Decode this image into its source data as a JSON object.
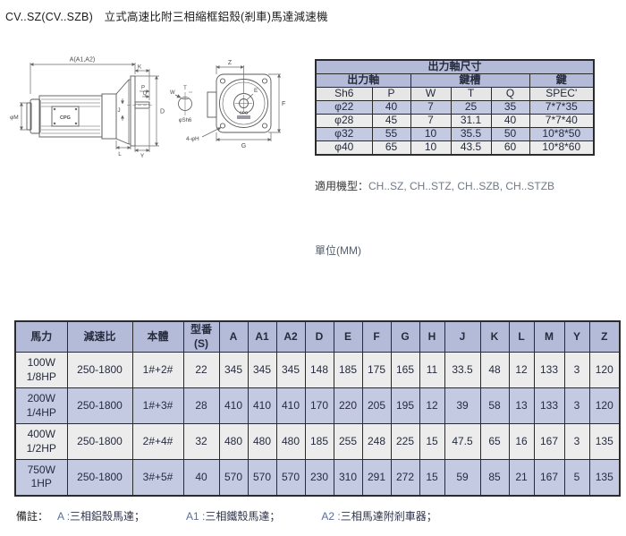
{
  "page": {
    "title": "CV..SZ(CV..SZB)　立式高速比附三相縮框鋁殼(剎車)馬達減速機",
    "applicable_label": "適用機型：",
    "applicable_models": "CH..SZ, CH..STZ, CH..SZB, CH..STZB",
    "unit_note": "單位(MM)"
  },
  "colors": {
    "table_header_fill": "#b3bbd8",
    "row_purple": "#c3cae2",
    "row_gray": "#ececec",
    "table_border": "#2b2b2b"
  },
  "drawing": {
    "side_view": {
      "dim_a": "A(A1,A2)",
      "dim_k": "K",
      "dim_p": "P",
      "dim_q": "Q",
      "dim_j": "J",
      "dim_d": "D",
      "dim_l": "L",
      "dim_y": "Y",
      "dim_phi_m": "φM",
      "logo": "CPG"
    },
    "shaft_detail": {
      "dim_w": "W",
      "dim_t": "T",
      "label": "φSh6"
    },
    "front_view": {
      "dim_z": "Z",
      "dim_e": "E",
      "dim_f": "F",
      "dim_g": "G",
      "bolt_label": "4-φH",
      "logo": "CPG"
    }
  },
  "shaft_table": {
    "title": "出力軸尺寸",
    "groups": [
      "出力軸",
      "鍵槽",
      "鍵"
    ],
    "columns": [
      "Sh6",
      "P",
      "W",
      "T",
      "Q",
      "SPEC'"
    ],
    "rows": [
      [
        "φ22",
        "40",
        "7",
        "25",
        "35",
        "7*7*35"
      ],
      [
        "φ28",
        "45",
        "7",
        "31.1",
        "40",
        "7*7*40"
      ],
      [
        "φ32",
        "55",
        "10",
        "35.5",
        "50",
        "10*8*50"
      ],
      [
        "φ40",
        "65",
        "10",
        "43.5",
        "60",
        "10*8*60"
      ]
    ]
  },
  "dimension_table": {
    "columns": [
      "馬力",
      "減速比",
      "本體",
      "型番\n(S)",
      "A",
      "A1",
      "A2",
      "D",
      "E",
      "F",
      "G",
      "H",
      "J",
      "K",
      "L",
      "M",
      "Y",
      "Z"
    ],
    "rows": [
      [
        "100W\n1/8HP",
        "250-1800",
        "1#+2#",
        "22",
        "345",
        "345",
        "345",
        "148",
        "185",
        "175",
        "165",
        "11",
        "33.5",
        "48",
        "12",
        "133",
        "3",
        "120"
      ],
      [
        "200W\n1/4HP",
        "250-1800",
        "1#+3#",
        "28",
        "410",
        "410",
        "410",
        "170",
        "220",
        "205",
        "195",
        "12",
        "39",
        "58",
        "13",
        "133",
        "3",
        "120"
      ],
      [
        "400W\n1/2HP",
        "250-1800",
        "2#+4#",
        "32",
        "480",
        "480",
        "480",
        "185",
        "255",
        "248",
        "225",
        "15",
        "47.5",
        "65",
        "16",
        "167",
        "3",
        "135"
      ],
      [
        "750W\n1HP",
        "250-1800",
        "3#+5#",
        "40",
        "570",
        "570",
        "570",
        "230",
        "310",
        "291",
        "272",
        "15",
        "59",
        "85",
        "21",
        "167",
        "5",
        "135"
      ]
    ]
  },
  "remark": {
    "label": "備註：",
    "items": [
      {
        "code": "A :",
        "text": "三相鋁殼馬達；"
      },
      {
        "code": "A1 :",
        "text": "三相鐵殼馬達；"
      },
      {
        "code": "A2 :",
        "text": "三相馬達附剎車器；"
      }
    ]
  }
}
